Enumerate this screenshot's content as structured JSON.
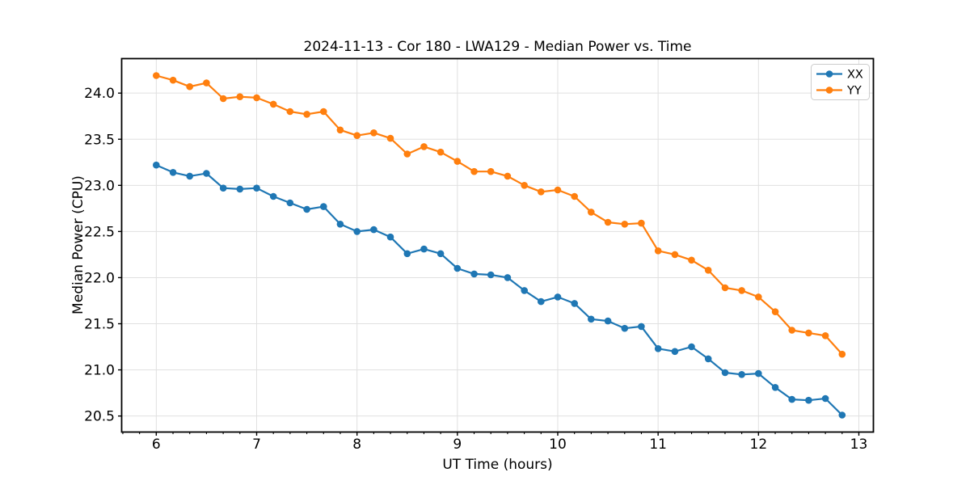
{
  "figure": {
    "title": "2024-11-13 - Cor 180 - LWA129 - Median Power vs. Time"
  },
  "chart_data": {
    "type": "line",
    "title": "2024-11-13 - Cor 180 - LWA129 - Median Power vs. Time",
    "xlabel": "UT Time (hours)",
    "ylabel": "Median Power (CPU)",
    "xlim": [
      5.655,
      13.145
    ],
    "ylim": [
      20.326,
      24.374
    ],
    "x_ticks": [
      6,
      7,
      8,
      9,
      10,
      11,
      12,
      13
    ],
    "y_ticks": [
      20.5,
      21.0,
      21.5,
      22.0,
      22.5,
      23.0,
      23.5,
      24.0
    ],
    "x_minor_tick_interval": 0.1667,
    "grid": true,
    "legend_position": "upper right",
    "x": [
      6.0,
      6.167,
      6.333,
      6.5,
      6.667,
      6.833,
      7.0,
      7.167,
      7.333,
      7.5,
      7.667,
      7.833,
      8.0,
      8.167,
      8.333,
      8.5,
      8.667,
      8.833,
      9.0,
      9.167,
      9.333,
      9.5,
      9.667,
      9.833,
      10.0,
      10.167,
      10.333,
      10.5,
      10.667,
      10.833,
      11.0,
      11.167,
      11.333,
      11.5,
      11.667,
      11.833,
      12.0,
      12.167,
      12.333,
      12.5,
      12.667,
      12.833
    ],
    "series": [
      {
        "name": "XX",
        "color": "#1f77b4",
        "marker": "circle",
        "values": [
          23.22,
          23.14,
          23.1,
          23.13,
          22.97,
          22.96,
          22.97,
          22.88,
          22.81,
          22.74,
          22.77,
          22.58,
          22.5,
          22.52,
          22.44,
          22.26,
          22.31,
          22.26,
          22.1,
          22.04,
          22.03,
          22.0,
          21.86,
          21.74,
          21.79,
          21.72,
          21.55,
          21.53,
          21.45,
          21.47,
          21.23,
          21.2,
          21.25,
          21.12,
          20.97,
          20.95,
          20.96,
          20.81,
          20.68,
          20.67,
          20.69,
          20.51
        ]
      },
      {
        "name": "YY",
        "color": "#ff7f0e",
        "marker": "circle",
        "values": [
          24.19,
          24.14,
          24.07,
          24.11,
          23.94,
          23.96,
          23.95,
          23.88,
          23.8,
          23.77,
          23.8,
          23.6,
          23.54,
          23.57,
          23.51,
          23.34,
          23.42,
          23.36,
          23.26,
          23.15,
          23.15,
          23.1,
          23.0,
          22.93,
          22.95,
          22.88,
          22.71,
          22.6,
          22.58,
          22.59,
          22.29,
          22.25,
          22.19,
          22.08,
          21.89,
          21.86,
          21.79,
          21.63,
          21.43,
          21.4,
          21.37,
          21.17
        ]
      }
    ],
    "style": {
      "grid_color": "#e0e0e0",
      "spine_color": "#000000",
      "background": "#ffffff"
    }
  }
}
